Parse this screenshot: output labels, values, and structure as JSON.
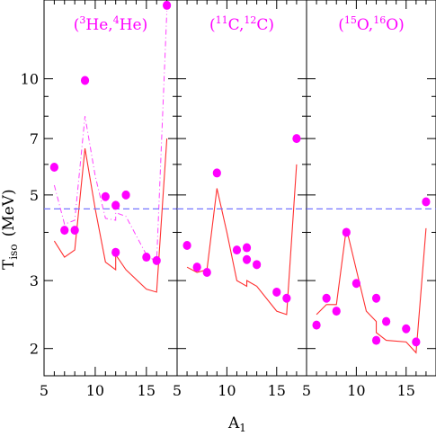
{
  "chart_data": {
    "type": "scatter",
    "xlabel_main": "A",
    "xlabel_sub": "1",
    "ylabel_main": "T",
    "ylabel_sub": "iso",
    "ylabel_unit": "(MeV)",
    "y_scale": "log",
    "ylim": [
      1.7,
      16
    ],
    "y_ticks": [
      2,
      3,
      5,
      7,
      10
    ],
    "x_ticks": [
      5,
      10,
      15
    ],
    "grid": false,
    "reference_line": {
      "y": 4.6,
      "style": "dashed",
      "color": "#7777ff"
    },
    "colors": {
      "points": "#ff00ff",
      "model": "#ff3030",
      "model_alt": "#ff40ff",
      "reference": "#7777ff"
    },
    "panels": [
      {
        "label": {
          "prefix": "(",
          "mass1": "3",
          "el1": "He,",
          "mass2": "4",
          "el2": "He)"
        },
        "xlim": [
          5,
          18
        ],
        "points": {
          "x": [
            6,
            7,
            8,
            9,
            11,
            12,
            12,
            13,
            15,
            16,
            17
          ],
          "y": [
            5.9,
            4.05,
            4.05,
            9.9,
            4.95,
            4.7,
            3.55,
            5.0,
            3.45,
            3.38,
            15.5
          ]
        },
        "model": {
          "x": [
            6,
            7,
            8,
            9,
            10,
            11,
            12,
            12,
            13,
            15,
            16,
            17
          ],
          "y": [
            3.8,
            3.45,
            3.6,
            6.6,
            4.6,
            3.35,
            3.2,
            3.5,
            3.2,
            2.85,
            2.8,
            7.0
          ]
        },
        "model_alt": {
          "x": [
            6,
            7,
            8,
            9,
            10,
            11,
            12,
            12,
            13,
            15,
            16,
            17
          ],
          "y": [
            5.3,
            4.2,
            4.3,
            8.0,
            5.6,
            4.35,
            4.3,
            4.5,
            4.4,
            3.5,
            3.35,
            15.0
          ]
        }
      },
      {
        "label": {
          "prefix": "(",
          "mass1": "11",
          "el1": "C,",
          "mass2": "12",
          "el2": "C)"
        },
        "xlim": [
          5,
          18
        ],
        "points": {
          "x": [
            6,
            7,
            8,
            9,
            11,
            12,
            12,
            13,
            15,
            16,
            17
          ],
          "y": [
            3.7,
            3.25,
            3.15,
            5.7,
            3.6,
            3.65,
            3.4,
            3.3,
            2.8,
            2.7,
            7.0
          ]
        },
        "model": {
          "x": [
            6,
            7,
            8,
            9,
            10,
            11,
            12,
            12,
            13,
            15,
            16,
            17
          ],
          "y": [
            3.25,
            3.15,
            3.2,
            5.2,
            4.0,
            3.0,
            2.9,
            3.0,
            2.9,
            2.5,
            2.45,
            6.0
          ]
        }
      },
      {
        "label": {
          "prefix": "(",
          "mass1": "15",
          "el1": "O,",
          "mass2": "16",
          "el2": "O)"
        },
        "xlim": [
          5,
          18
        ],
        "points": {
          "x": [
            6,
            7,
            8,
            9,
            10,
            12,
            12,
            13,
            15,
            16,
            17
          ],
          "y": [
            2.3,
            2.7,
            2.5,
            4.0,
            2.95,
            2.7,
            2.1,
            2.35,
            2.25,
            2.08,
            4.8
          ]
        },
        "model": {
          "x": [
            6,
            7,
            8,
            9,
            10,
            11,
            12,
            12,
            13,
            15,
            16,
            17
          ],
          "y": [
            2.45,
            2.6,
            2.6,
            4.1,
            3.2,
            2.5,
            2.35,
            2.2,
            2.1,
            2.08,
            1.95,
            4.1
          ]
        }
      }
    ]
  }
}
